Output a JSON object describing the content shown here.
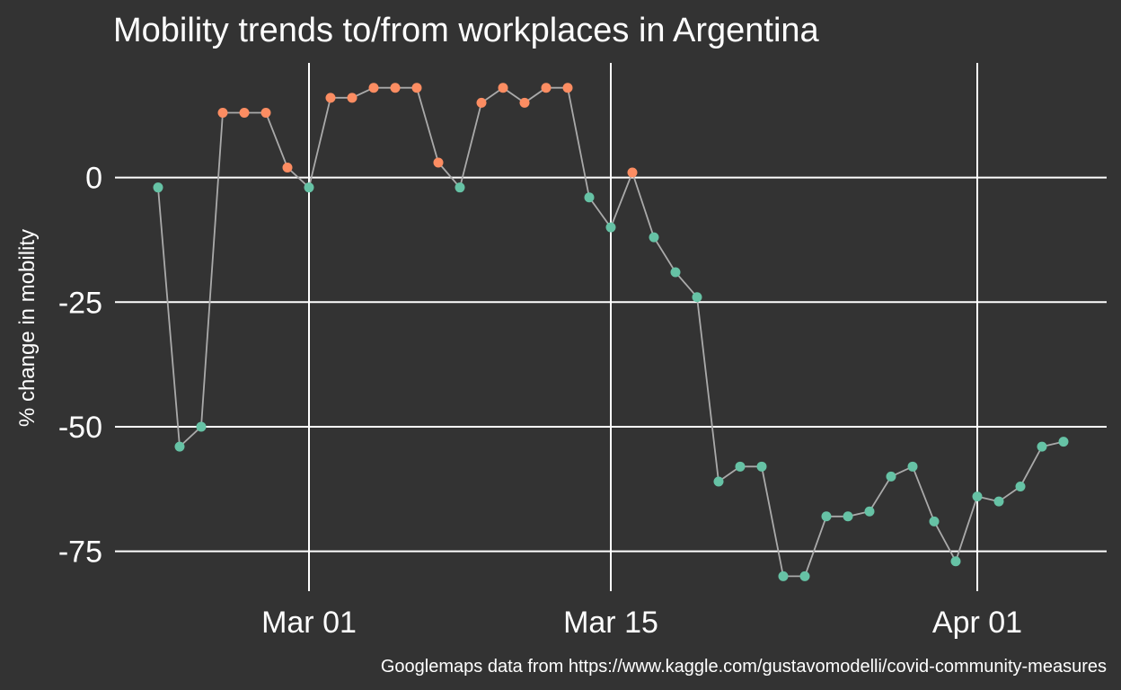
{
  "title": "Mobility trends to/from workplaces in Argentina",
  "caption": "Googlemaps data from https://www.kaggle.com/gustavomodelli/covid-community-measures",
  "colors": {
    "background": "#333333",
    "grid": "#ffffff",
    "line": "#aaaaaa",
    "above_baseline": "#fc8d62",
    "below_baseline": "#66c2a5"
  },
  "chart_data": {
    "type": "line",
    "title": "Mobility trends to/from workplaces in Argentina",
    "xlabel": "",
    "ylabel": "% change in mobility",
    "x_type": "date",
    "xlim": [
      "2020-02-21",
      "2020-04-07"
    ],
    "ylim": [
      -83,
      23
    ],
    "y_ticks": [
      0,
      -25,
      -50,
      -75
    ],
    "y_tick_labels": [
      "0",
      "-25",
      "-50",
      "-75"
    ],
    "x_ticks": [
      "2020-03-01",
      "2020-03-15",
      "2020-04-01"
    ],
    "x_tick_labels": [
      "Mar 01",
      "Mar 15",
      "Apr 01"
    ],
    "grid": true,
    "legend": "none",
    "point_color_rule": "orange when value > 0, green otherwise",
    "series": [
      {
        "x": [
          "2020-02-23",
          "2020-02-24",
          "2020-02-25",
          "2020-02-26",
          "2020-02-27",
          "2020-02-28",
          "2020-02-29",
          "2020-03-01",
          "2020-03-02",
          "2020-03-03",
          "2020-03-04",
          "2020-03-05",
          "2020-03-06",
          "2020-03-07",
          "2020-03-08",
          "2020-03-09",
          "2020-03-10",
          "2020-03-11",
          "2020-03-12",
          "2020-03-13",
          "2020-03-14",
          "2020-03-15",
          "2020-03-16",
          "2020-03-17",
          "2020-03-18",
          "2020-03-19",
          "2020-03-20",
          "2020-03-21",
          "2020-03-22",
          "2020-03-23",
          "2020-03-24",
          "2020-03-25",
          "2020-03-26",
          "2020-03-27",
          "2020-03-28",
          "2020-03-29",
          "2020-03-30",
          "2020-03-31",
          "2020-04-01",
          "2020-04-02",
          "2020-04-03",
          "2020-04-04",
          "2020-04-05"
        ],
        "values": [
          -2,
          -54,
          -50,
          13,
          13,
          13,
          2,
          -2,
          16,
          16,
          18,
          18,
          18,
          3,
          -2,
          15,
          18,
          15,
          18,
          18,
          -4,
          -10,
          1,
          -12,
          -19,
          -24,
          -61,
          -58,
          -58,
          -80,
          -80,
          -68,
          -68,
          -67,
          -60,
          -58,
          -69,
          -77,
          -64,
          -65,
          -62,
          -54,
          -53
        ]
      }
    ]
  }
}
